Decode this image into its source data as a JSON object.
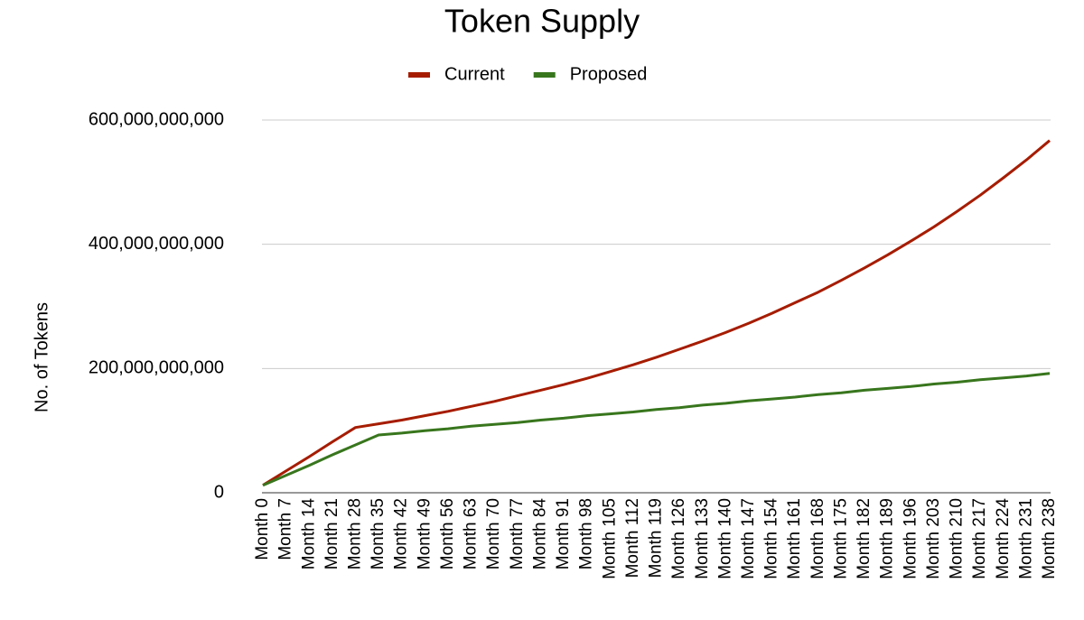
{
  "chart_data": {
    "type": "line",
    "title": "Token Supply",
    "y_label": "No. of Tokens",
    "categories": [
      "Month 0",
      "Month 7",
      "Month 14",
      "Month 21",
      "Month 28",
      "Month 35",
      "Month 42",
      "Month 49",
      "Month 56",
      "Month 63",
      "Month 70",
      "Month 77",
      "Month 84",
      "Month 91",
      "Month 98",
      "Month 105",
      "Month 112",
      "Month 119",
      "Month 126",
      "Month 133",
      "Month 140",
      "Month 147",
      "Month 154",
      "Month 161",
      "Month 168",
      "Month 175",
      "Month 182",
      "Month 189",
      "Month 196",
      "Month 203",
      "Month 210",
      "Month 217",
      "Month 224",
      "Month 231",
      "Month 238"
    ],
    "series": [
      {
        "name": "Current",
        "color": "#a61c00",
        "values": [
          12000000000,
          35000000000,
          58000000000,
          82000000000,
          105000000000,
          111000000000,
          117000000000,
          124000000000,
          131000000000,
          139000000000,
          147000000000,
          156000000000,
          165000000000,
          174000000000,
          184000000000,
          195000000000,
          206000000000,
          218000000000,
          231000000000,
          244000000000,
          258000000000,
          273000000000,
          289000000000,
          306000000000,
          323000000000,
          342000000000,
          362000000000,
          383000000000,
          405000000000,
          428000000000,
          453000000000,
          479000000000,
          507000000000,
          536000000000,
          567000000000
        ]
      },
      {
        "name": "Proposed",
        "color": "#38761d",
        "values": [
          12000000000,
          28000000000,
          44000000000,
          61000000000,
          77000000000,
          93000000000,
          96000000000,
          100000000000,
          103000000000,
          107000000000,
          110000000000,
          113000000000,
          117000000000,
          120000000000,
          124000000000,
          127000000000,
          130000000000,
          134000000000,
          137000000000,
          141000000000,
          144000000000,
          148000000000,
          151000000000,
          154000000000,
          158000000000,
          161000000000,
          165000000000,
          168000000000,
          171000000000,
          175000000000,
          178000000000,
          182000000000,
          185000000000,
          188000000000,
          192000000000
        ]
      }
    ],
    "ylim": [
      0,
      600000000000
    ],
    "yticks": [
      0,
      {
        "value": 200000000000,
        "label": "200,000,000,000"
      },
      {
        "value": 400000000000,
        "label": "400,000,000,000"
      },
      {
        "value": 600000000000,
        "label": "600,000,000,000"
      }
    ],
    "grid": true,
    "legend": "top"
  }
}
